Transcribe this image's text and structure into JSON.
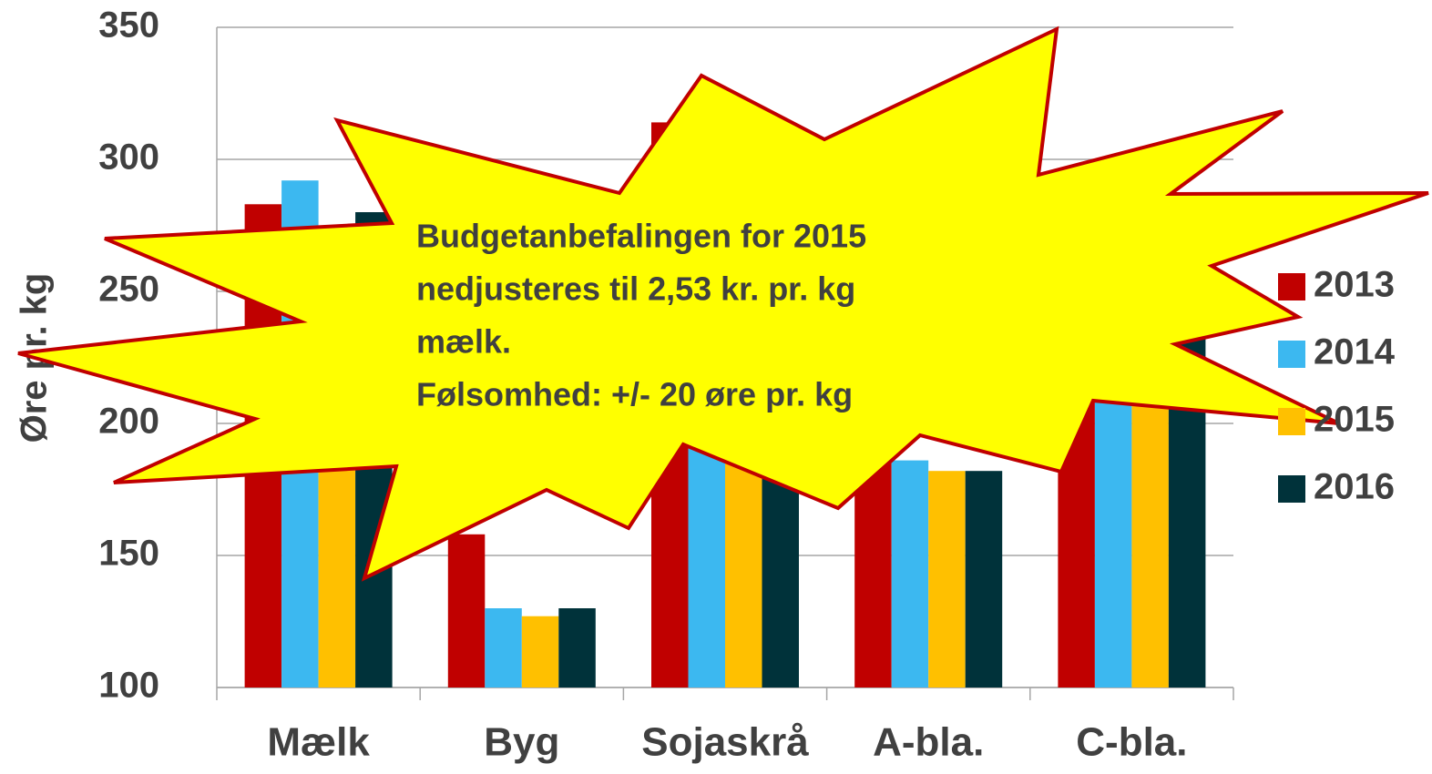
{
  "chart_data": {
    "type": "bar",
    "ylabel": "Øre pr. kg",
    "categories": [
      "Mælk",
      "Byg",
      "Sojaskrå",
      "A-bla.",
      "C-bla."
    ],
    "series": [
      {
        "name": "2013",
        "color": "#c00000",
        "values": [
          283,
          158,
          314,
          200,
          240
        ]
      },
      {
        "name": "2014",
        "color": "#3cb8f0",
        "values": [
          292,
          130,
          290,
          186,
          230
        ]
      },
      {
        "name": "2015",
        "color": "#ffc000",
        "values": [
          253,
          127,
          280,
          182,
          228
        ]
      },
      {
        "name": "2016",
        "color": "#00323a",
        "values": [
          280,
          130,
          280,
          182,
          233
        ]
      }
    ],
    "ylim": [
      100,
      350
    ],
    "yticks": [
      100,
      150,
      200,
      250,
      300,
      350
    ],
    "grid": true,
    "legend": "right",
    "annotation": [
      "Budgetanbefalingen for 2015",
      "nedjusteres til 2,53 kr. pr. kg",
      "mælk.",
      "Følsomhed: +/- 20 øre pr. kg"
    ]
  }
}
